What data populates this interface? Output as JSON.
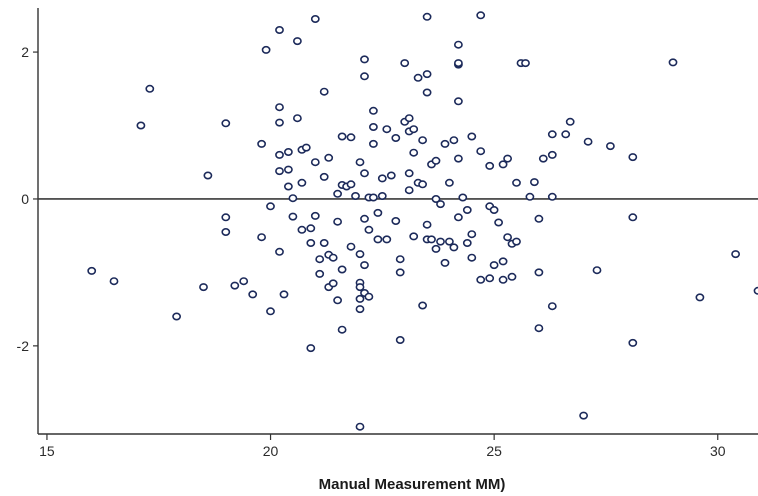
{
  "chart_data": {
    "type": "scatter",
    "title": "",
    "xlabel": "Manual Measurement MM)",
    "ylabel": "",
    "xlim": [
      14.8,
      30.9
    ],
    "ylim": [
      -3.2,
      2.6
    ],
    "x_ticks": [
      15,
      20,
      25,
      30
    ],
    "x_tick_labels": [
      "15",
      "20",
      "25",
      "30"
    ],
    "y_ticks": [
      2,
      0,
      -2
    ],
    "y_tick_labels": [
      "2",
      "0",
      "-2"
    ],
    "reference_line_y": 0,
    "grid": false,
    "colors": {
      "point_stroke": "#1c2a5a",
      "axis": "#333333"
    },
    "series": [
      {
        "points": [
          [
            16.0,
            -0.98
          ],
          [
            16.5,
            -1.12
          ],
          [
            17.1,
            1.0
          ],
          [
            17.3,
            1.5
          ],
          [
            17.9,
            -1.6
          ],
          [
            18.5,
            -1.2
          ],
          [
            18.6,
            0.32
          ],
          [
            19.0,
            1.03
          ],
          [
            19.0,
            -0.25
          ],
          [
            19.0,
            -0.45
          ],
          [
            19.2,
            -1.18
          ],
          [
            19.4,
            -1.12
          ],
          [
            19.6,
            -1.3
          ],
          [
            19.8,
            0.75
          ],
          [
            19.8,
            -0.52
          ],
          [
            19.9,
            2.03
          ],
          [
            20.0,
            -0.1
          ],
          [
            20.0,
            -1.53
          ],
          [
            20.2,
            2.3
          ],
          [
            20.2,
            1.25
          ],
          [
            20.2,
            1.04
          ],
          [
            20.2,
            0.6
          ],
          [
            20.2,
            0.38
          ],
          [
            20.2,
            -0.72
          ],
          [
            20.3,
            -1.3
          ],
          [
            20.4,
            0.64
          ],
          [
            20.4,
            0.4
          ],
          [
            20.4,
            0.17
          ],
          [
            20.5,
            0.01
          ],
          [
            20.5,
            -0.24
          ],
          [
            20.6,
            2.15
          ],
          [
            20.6,
            1.1
          ],
          [
            20.7,
            0.67
          ],
          [
            20.7,
            0.22
          ],
          [
            20.7,
            -0.42
          ],
          [
            20.8,
            0.7
          ],
          [
            20.9,
            -0.4
          ],
          [
            20.9,
            -0.6
          ],
          [
            20.9,
            -2.03
          ],
          [
            21.0,
            2.45
          ],
          [
            21.0,
            0.5
          ],
          [
            21.0,
            -0.23
          ],
          [
            21.1,
            -0.82
          ],
          [
            21.1,
            -1.02
          ],
          [
            21.2,
            1.46
          ],
          [
            21.2,
            0.3
          ],
          [
            21.2,
            -0.6
          ],
          [
            21.3,
            0.56
          ],
          [
            21.3,
            -0.76
          ],
          [
            21.3,
            -1.2
          ],
          [
            21.4,
            -0.8
          ],
          [
            21.4,
            -1.15
          ],
          [
            21.5,
            0.07
          ],
          [
            21.5,
            -0.31
          ],
          [
            21.5,
            -1.38
          ],
          [
            21.6,
            0.85
          ],
          [
            21.6,
            0.19
          ],
          [
            21.6,
            -0.96
          ],
          [
            21.6,
            -1.78
          ],
          [
            21.7,
            0.17
          ],
          [
            21.8,
            0.84
          ],
          [
            21.8,
            0.2
          ],
          [
            21.8,
            -0.65
          ],
          [
            21.9,
            0.04
          ],
          [
            22.0,
            0.5
          ],
          [
            22.0,
            -0.75
          ],
          [
            22.0,
            -1.14
          ],
          [
            22.0,
            -1.2
          ],
          [
            22.0,
            -1.36
          ],
          [
            22.0,
            -1.5
          ],
          [
            22.0,
            -3.1
          ],
          [
            22.1,
            1.9
          ],
          [
            22.1,
            1.67
          ],
          [
            22.1,
            0.35
          ],
          [
            22.1,
            -0.27
          ],
          [
            22.1,
            -0.9
          ],
          [
            22.1,
            -1.28
          ],
          [
            22.2,
            0.02
          ],
          [
            22.2,
            -0.42
          ],
          [
            22.2,
            -1.33
          ],
          [
            22.3,
            1.2
          ],
          [
            22.3,
            0.98
          ],
          [
            22.3,
            0.75
          ],
          [
            22.3,
            0.02
          ],
          [
            22.4,
            -0.19
          ],
          [
            22.4,
            -0.55
          ],
          [
            22.5,
            0.28
          ],
          [
            22.5,
            0.04
          ],
          [
            22.6,
            0.95
          ],
          [
            22.6,
            -0.55
          ],
          [
            22.7,
            0.32
          ],
          [
            22.8,
            0.83
          ],
          [
            22.8,
            -0.3
          ],
          [
            22.9,
            -0.82
          ],
          [
            22.9,
            -1.0
          ],
          [
            22.9,
            -1.92
          ],
          [
            23.0,
            1.85
          ],
          [
            23.0,
            1.05
          ],
          [
            23.1,
            1.1
          ],
          [
            23.1,
            0.92
          ],
          [
            23.1,
            0.35
          ],
          [
            23.1,
            0.12
          ],
          [
            23.2,
            0.95
          ],
          [
            23.2,
            0.63
          ],
          [
            23.2,
            -0.51
          ],
          [
            23.3,
            1.65
          ],
          [
            23.3,
            0.22
          ],
          [
            23.4,
            0.8
          ],
          [
            23.4,
            0.2
          ],
          [
            23.4,
            -1.45
          ],
          [
            23.5,
            2.48
          ],
          [
            23.5,
            1.7
          ],
          [
            23.5,
            1.45
          ],
          [
            23.5,
            -0.35
          ],
          [
            23.5,
            -0.55
          ],
          [
            23.6,
            0.47
          ],
          [
            23.6,
            -0.55
          ],
          [
            23.7,
            0.52
          ],
          [
            23.7,
            0.0
          ],
          [
            23.7,
            -0.68
          ],
          [
            23.8,
            -0.07
          ],
          [
            23.8,
            -0.58
          ],
          [
            23.9,
            0.75
          ],
          [
            23.9,
            -0.87
          ],
          [
            24.0,
            0.22
          ],
          [
            24.0,
            -0.58
          ],
          [
            24.1,
            0.8
          ],
          [
            24.1,
            -0.66
          ],
          [
            24.2,
            2.1
          ],
          [
            24.2,
            1.83
          ],
          [
            24.2,
            1.85
          ],
          [
            24.2,
            1.33
          ],
          [
            24.2,
            0.55
          ],
          [
            24.2,
            -0.25
          ],
          [
            24.3,
            0.02
          ],
          [
            24.4,
            -0.15
          ],
          [
            24.4,
            -0.6
          ],
          [
            24.5,
            0.85
          ],
          [
            24.5,
            -0.48
          ],
          [
            24.5,
            -0.8
          ],
          [
            24.7,
            2.5
          ],
          [
            24.7,
            0.65
          ],
          [
            24.7,
            -1.1
          ],
          [
            24.9,
            0.45
          ],
          [
            24.9,
            -0.1
          ],
          [
            24.9,
            -1.08
          ],
          [
            25.0,
            -0.15
          ],
          [
            25.0,
            -0.9
          ],
          [
            25.1,
            -0.32
          ],
          [
            25.2,
            0.47
          ],
          [
            25.2,
            -0.85
          ],
          [
            25.2,
            -1.1
          ],
          [
            25.3,
            0.55
          ],
          [
            25.3,
            -0.52
          ],
          [
            25.4,
            -0.61
          ],
          [
            25.4,
            -1.06
          ],
          [
            25.5,
            0.22
          ],
          [
            25.5,
            -0.58
          ],
          [
            25.6,
            1.85
          ],
          [
            25.7,
            1.85
          ],
          [
            25.8,
            0.03
          ],
          [
            25.9,
            0.23
          ],
          [
            26.0,
            -1.0
          ],
          [
            26.0,
            -1.76
          ],
          [
            26.0,
            -0.27
          ],
          [
            26.1,
            0.55
          ],
          [
            26.3,
            0.88
          ],
          [
            26.3,
            0.6
          ],
          [
            26.3,
            0.03
          ],
          [
            26.3,
            -1.46
          ],
          [
            26.6,
            0.88
          ],
          [
            26.7,
            1.05
          ],
          [
            27.0,
            -2.95
          ],
          [
            27.1,
            0.78
          ],
          [
            27.3,
            -0.97
          ],
          [
            27.6,
            0.72
          ],
          [
            28.1,
            0.57
          ],
          [
            28.1,
            -0.25
          ],
          [
            28.1,
            -1.96
          ],
          [
            29.0,
            1.86
          ],
          [
            29.6,
            -1.34
          ],
          [
            30.4,
            -0.75
          ],
          [
            30.9,
            -1.25
          ]
        ]
      }
    ]
  }
}
